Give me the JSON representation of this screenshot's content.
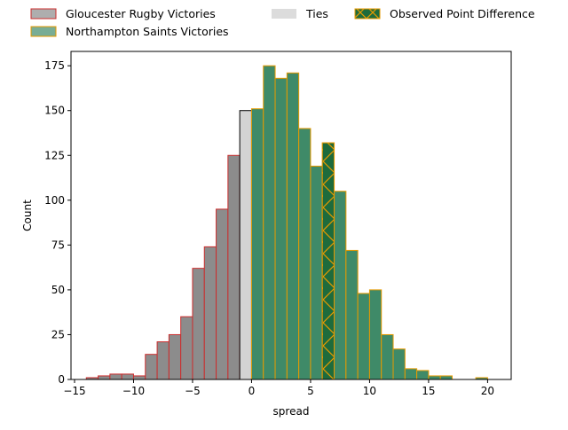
{
  "chart_data": {
    "type": "bar",
    "title": "",
    "xlabel": "spread",
    "ylabel": "Count",
    "xlim": [
      -15.3,
      22.0
    ],
    "ylim": [
      0,
      183
    ],
    "xticks": [
      -15,
      -10,
      -5,
      0,
      5,
      10,
      15,
      20
    ],
    "xtick_labels": [
      "−15",
      "−10",
      "−5",
      "0",
      "5",
      "10",
      "15",
      "20"
    ],
    "yticks": [
      0,
      25,
      50,
      75,
      100,
      125,
      150,
      175
    ],
    "ytick_labels": [
      "0",
      "25",
      "50",
      "75",
      "100",
      "125",
      "150",
      "175"
    ],
    "grid": false,
    "legend_position": "above plot, 3 columns",
    "bin_width": 1,
    "series": [
      {
        "name": "Gloucester Rugby Victories",
        "fill": "#8c8c8c",
        "edge": "#cc2d2d",
        "bins": [
          [
            -13.5,
            1
          ],
          [
            -12.5,
            2
          ],
          [
            -11.5,
            3
          ],
          [
            -10.5,
            3
          ],
          [
            -9.5,
            2
          ],
          [
            -8.5,
            14
          ],
          [
            -7.5,
            21
          ],
          [
            -6.5,
            25
          ],
          [
            -5.5,
            35
          ],
          [
            -4.5,
            62
          ],
          [
            -3.5,
            74
          ],
          [
            -2.5,
            95
          ],
          [
            -1.5,
            125
          ]
        ]
      },
      {
        "name": "Ties",
        "fill": "#d3d3d3",
        "edge": "#000000",
        "bins": [
          [
            -0.5,
            150
          ]
        ]
      },
      {
        "name": "Northampton Saints Victories",
        "fill": "#3f8a68",
        "edge": "#e69a00",
        "bins": [
          [
            0.5,
            151
          ],
          [
            1.5,
            175
          ],
          [
            2.5,
            168
          ],
          [
            3.5,
            171
          ],
          [
            4.5,
            140
          ],
          [
            5.5,
            119
          ],
          [
            6.5,
            132
          ],
          [
            7.5,
            105
          ],
          [
            8.5,
            72
          ],
          [
            9.5,
            48
          ],
          [
            10.5,
            50
          ],
          [
            11.5,
            25
          ],
          [
            12.5,
            17
          ],
          [
            13.5,
            6
          ],
          [
            14.5,
            5
          ],
          [
            15.5,
            2
          ],
          [
            16.5,
            2
          ],
          [
            19.5,
            1
          ]
        ]
      },
      {
        "name": "Observed Point Difference",
        "fill": "#1e6b3c",
        "edge": "#e69a00",
        "hatch": "x",
        "bins": [
          [
            6.5,
            132
          ]
        ]
      }
    ]
  }
}
